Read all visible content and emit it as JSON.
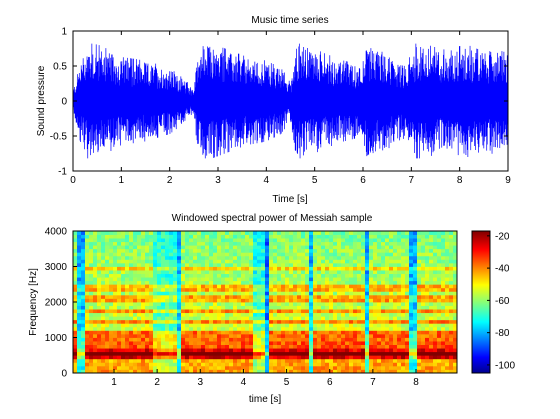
{
  "chart_data": [
    {
      "type": "line",
      "title": "Music time series",
      "xlabel": "Time [s]",
      "ylabel": "Sound pressure",
      "xlim": [
        0,
        9
      ],
      "ylim": [
        -1,
        1
      ],
      "xticks": [
        0,
        1,
        2,
        3,
        4,
        5,
        6,
        7,
        8,
        9
      ],
      "yticks": [
        -1,
        -0.5,
        0,
        0.5,
        1
      ],
      "ytick_labels": [
        "-1",
        "-0.5",
        "0",
        "0.5",
        "1"
      ],
      "series_color": "#0000ff",
      "envelope": {
        "t": [
          0.0,
          0.15,
          0.3,
          0.6,
          1.0,
          1.5,
          2.0,
          2.3,
          2.5,
          2.6,
          2.8,
          3.2,
          3.6,
          4.0,
          4.3,
          4.5,
          4.6,
          4.8,
          5.2,
          5.6,
          5.9,
          6.1,
          6.4,
          6.7,
          6.9,
          7.1,
          7.4,
          7.8,
          8.1,
          8.4,
          8.7,
          9.0
        ],
        "amplitude": [
          0.15,
          0.55,
          0.8,
          0.75,
          0.6,
          0.55,
          0.45,
          0.3,
          0.18,
          0.8,
          0.8,
          0.7,
          0.6,
          0.55,
          0.45,
          0.28,
          0.8,
          0.78,
          0.65,
          0.55,
          0.5,
          0.78,
          0.72,
          0.55,
          0.5,
          0.8,
          0.75,
          0.68,
          0.78,
          0.7,
          0.72,
          0.65
        ]
      }
    },
    {
      "type": "heatmap",
      "title": "Windowed spectral power of Messiah sample",
      "xlabel": "time [s]",
      "ylabel": "Frequency [Hz]",
      "xlim": [
        0.05,
        8.95
      ],
      "ylim": [
        0,
        4000
      ],
      "xticks": [
        1,
        2,
        3,
        4,
        5,
        6,
        7,
        8
      ],
      "yticks": [
        0,
        1000,
        2000,
        3000,
        4000
      ],
      "colorbar": {
        "range": [
          -105,
          -17
        ],
        "ticks": [
          -20,
          -40,
          -60,
          -80,
          -100
        ],
        "colormap": "jet"
      },
      "harmonic_bands_hz": [
        480,
        620,
        800,
        1000,
        1150,
        1450,
        1750,
        2100,
        2400,
        2950
      ],
      "note_onsets_s": [
        0.3,
        2.55,
        4.6,
        5.6,
        6.95,
        8.0
      ]
    }
  ]
}
